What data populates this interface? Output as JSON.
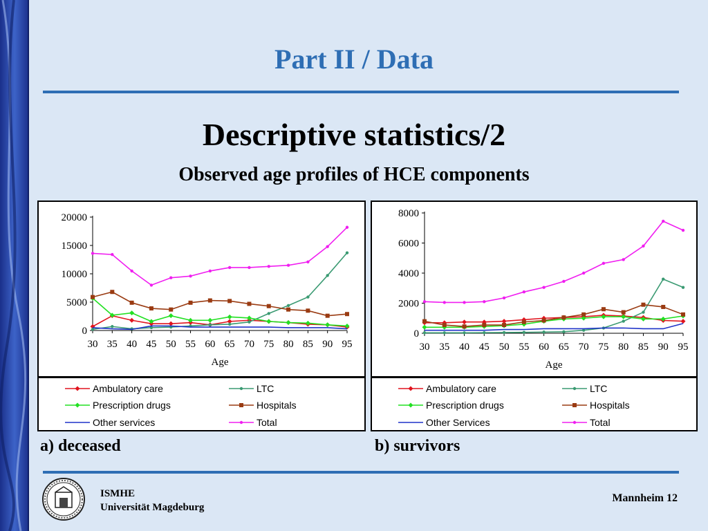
{
  "slide": {
    "title": "Part II / Data",
    "heading": "Descriptive statistics/2",
    "subheading": "Observed age profiles of HCE components",
    "caption_left": "a) deceased",
    "caption_right": "b) survivors",
    "footer_org_line1": "ISMHE",
    "footer_org_line2": "Universität Magdeburg",
    "footer_right": "Mannheim 12",
    "accent_color": "#2e6eb4",
    "background_color": "#dbe7f5"
  },
  "chart_data": [
    {
      "type": "line",
      "caption": "a) deceased",
      "xlabel": "Age",
      "ylabel": "",
      "x": [
        30,
        35,
        40,
        45,
        50,
        55,
        60,
        65,
        70,
        75,
        80,
        85,
        90,
        95
      ],
      "ylim": [
        0,
        20000
      ],
      "yticks": [
        0,
        5000,
        10000,
        15000,
        20000
      ],
      "legend_position": "bottom",
      "grid": false,
      "series": [
        {
          "name": "Ambulatory care",
          "color": "#e0141e",
          "marker": "diamond",
          "values": [
            700,
            2600,
            1800,
            1200,
            1200,
            1400,
            1000,
            1600,
            1800,
            1600,
            1400,
            1100,
            1000,
            600
          ]
        },
        {
          "name": "LTC",
          "color": "#3a9a72",
          "marker": "dot",
          "values": [
            200,
            700,
            300,
            500,
            600,
            800,
            1000,
            1100,
            1500,
            3000,
            4400,
            5900,
            9700,
            13700
          ]
        },
        {
          "name": "Prescription drugs",
          "color": "#22e022",
          "marker": "diamond",
          "values": [
            5700,
            2700,
            3100,
            1600,
            2600,
            1800,
            1800,
            2400,
            2200,
            1600,
            1400,
            1300,
            1000,
            800
          ]
        },
        {
          "name": "Hospitals",
          "color": "#9a3b12",
          "marker": "square",
          "values": [
            5900,
            6800,
            4900,
            3900,
            3700,
            4900,
            5300,
            5200,
            4700,
            4300,
            3700,
            3500,
            2600,
            2900
          ]
        },
        {
          "name": "Other services",
          "color": "#1e32c8",
          "marker": "none",
          "values": [
            500,
            300,
            200,
            800,
            800,
            600,
            600,
            600,
            600,
            600,
            500,
            500,
            500,
            300
          ]
        },
        {
          "name": "Total",
          "color": "#f01ef0",
          "marker": "dot",
          "values": [
            13600,
            13400,
            10500,
            8000,
            9300,
            9600,
            10500,
            11100,
            11100,
            11300,
            11500,
            12100,
            14800,
            18200
          ]
        }
      ]
    },
    {
      "type": "line",
      "caption": "b) survivors",
      "xlabel": "Age",
      "ylabel": "",
      "x": [
        30,
        35,
        40,
        45,
        50,
        55,
        60,
        65,
        70,
        75,
        80,
        85,
        90,
        95
      ],
      "ylim": [
        0,
        8000
      ],
      "yticks": [
        0,
        2000,
        4000,
        6000,
        8000
      ],
      "legend_position": "bottom",
      "grid": false,
      "series": [
        {
          "name": "Ambulatory care",
          "color": "#e0141e",
          "marker": "diamond",
          "values": [
            700,
            700,
            750,
            750,
            800,
            900,
            1000,
            1050,
            1100,
            1200,
            1150,
            1050,
            850,
            800
          ]
        },
        {
          "name": "LTC",
          "color": "#3a9a72",
          "marker": "dot",
          "values": [
            30,
            30,
            30,
            40,
            50,
            60,
            80,
            100,
            200,
            350,
            800,
            1400,
            3600,
            3050
          ]
        },
        {
          "name": "Prescription drugs",
          "color": "#22e022",
          "marker": "diamond",
          "values": [
            400,
            400,
            400,
            450,
            500,
            600,
            800,
            950,
            1000,
            1100,
            1100,
            950,
            950,
            1150
          ]
        },
        {
          "name": "Hospitals",
          "color": "#9a3b12",
          "marker": "square",
          "values": [
            800,
            550,
            450,
            550,
            550,
            750,
            850,
            1050,
            1250,
            1600,
            1400,
            1900,
            1750,
            1250
          ]
        },
        {
          "name": "Other Services",
          "color": "#1e32c8",
          "marker": "none",
          "values": [
            200,
            200,
            200,
            200,
            250,
            250,
            300,
            300,
            300,
            350,
            350,
            300,
            300,
            650
          ]
        },
        {
          "name": "Total",
          "color": "#f01ef0",
          "marker": "dot",
          "values": [
            2100,
            2050,
            2050,
            2100,
            2350,
            2750,
            3050,
            3450,
            4000,
            4650,
            4900,
            5800,
            7450,
            6850
          ]
        }
      ]
    }
  ]
}
